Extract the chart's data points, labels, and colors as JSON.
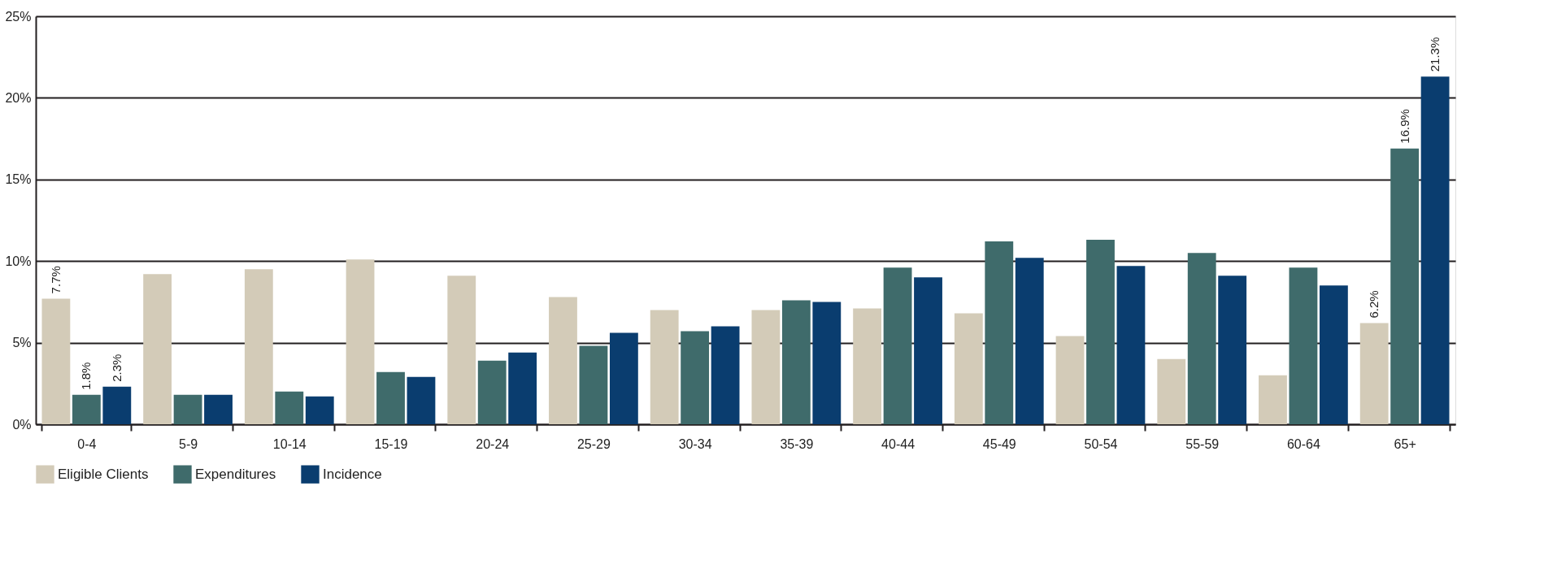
{
  "chart_data": {
    "type": "bar",
    "categories": [
      "0-4",
      "5-9",
      "10-14",
      "15-19",
      "20-24",
      "25-29",
      "30-34",
      "35-39",
      "40-44",
      "45-49",
      "50-54",
      "55-59",
      "60-64",
      "65+"
    ],
    "series": [
      {
        "name": "Eligible Clients",
        "color": "#d3cbb8",
        "values": [
          7.7,
          9.2,
          9.5,
          10.1,
          9.1,
          7.8,
          7.0,
          7.0,
          7.1,
          6.8,
          5.4,
          4.0,
          3.0,
          6.2
        ],
        "value_labels": [
          "7.7%",
          null,
          null,
          null,
          null,
          null,
          null,
          null,
          null,
          null,
          null,
          null,
          null,
          "6.2%"
        ]
      },
      {
        "name": "Expenditures",
        "color": "#3f6b6b",
        "values": [
          1.8,
          1.8,
          2.0,
          3.2,
          3.9,
          4.8,
          5.7,
          7.6,
          9.6,
          11.2,
          11.3,
          10.5,
          9.6,
          16.9
        ],
        "value_labels": [
          "1.8%",
          null,
          null,
          null,
          null,
          null,
          null,
          null,
          null,
          null,
          null,
          null,
          null,
          "16.9%"
        ]
      },
      {
        "name": "Incidence",
        "color": "#0a3d6f",
        "values": [
          2.3,
          1.8,
          1.7,
          2.9,
          4.4,
          5.6,
          6.0,
          7.5,
          9.0,
          10.2,
          9.7,
          9.1,
          8.5,
          21.3
        ],
        "value_labels": [
          "2.3%",
          null,
          null,
          null,
          null,
          null,
          null,
          null,
          null,
          null,
          null,
          null,
          null,
          "21.3%"
        ]
      }
    ],
    "ylim": [
      0,
      25
    ],
    "yticks": [
      {
        "value": 0,
        "label": "0%"
      },
      {
        "value": 5,
        "label": "5%"
      },
      {
        "value": 10,
        "label": "10%"
      },
      {
        "value": 15,
        "label": "15%"
      },
      {
        "value": 20,
        "label": "20%"
      },
      {
        "value": 25,
        "label": "25%"
      }
    ],
    "grid": "y",
    "legend": "bottom"
  }
}
